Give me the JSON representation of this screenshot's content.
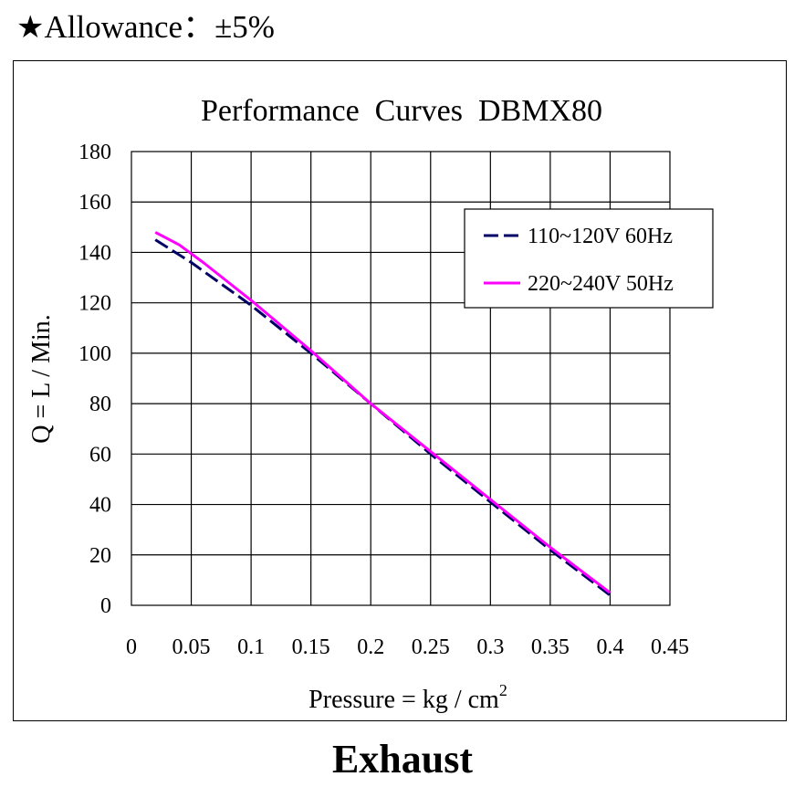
{
  "header": {
    "star": "★",
    "allowance_text": "Allowance：±5%"
  },
  "footer": {
    "label": "Exhaust"
  },
  "chart_data": {
    "type": "line",
    "title": "Performance  Curves  DBMX80",
    "xlabel": "Pressure = kg / cm",
    "xlabel_superscript": "2",
    "ylabel": "Q = L / Min.",
    "xlim": [
      0,
      0.45
    ],
    "ylim": [
      0,
      180
    ],
    "x_ticks": [
      "0",
      "0.05",
      "0.1",
      "0.15",
      "0.2",
      "0.25",
      "0.3",
      "0.35",
      "0.4",
      "0.45"
    ],
    "y_ticks": [
      "0",
      "20",
      "40",
      "60",
      "80",
      "100",
      "120",
      "140",
      "160",
      "180"
    ],
    "grid": true,
    "legend_position": "top-right",
    "series": [
      {
        "name": "110~120V 60Hz",
        "color": "#000066",
        "style": "dashed",
        "x": [
          0.02,
          0.05,
          0.1,
          0.15,
          0.2,
          0.25,
          0.3,
          0.35,
          0.4
        ],
        "y": [
          145,
          136,
          119,
          100,
          80,
          60,
          41,
          22,
          4
        ]
      },
      {
        "name": "220~240V 50Hz",
        "color": "#ff00ff",
        "style": "solid",
        "x": [
          0.02,
          0.04,
          0.06,
          0.1,
          0.15,
          0.2,
          0.25,
          0.3,
          0.35,
          0.4
        ],
        "y": [
          148,
          143,
          136,
          121,
          101,
          80,
          61,
          42,
          23,
          5
        ]
      }
    ]
  }
}
